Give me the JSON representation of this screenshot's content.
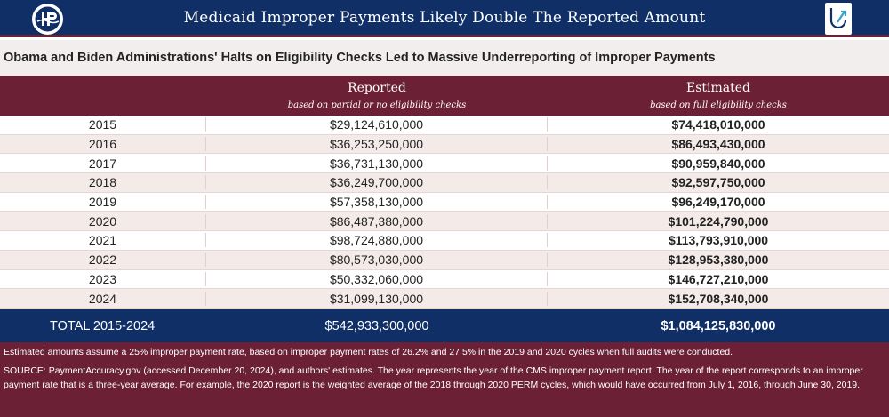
{
  "banner": {
    "title": "Medicaid Improper Payments Likely Double The Reported Amount",
    "left_logo_icon": "ohp-logo-icon",
    "right_logo_icon": "paragon-arrow-logo-icon"
  },
  "subtitle": "Obama and Biden Administrations' Halts on Eligibility Checks Led to Massive Underreporting of Improper Payments",
  "table": {
    "headers": {
      "reported": "Reported",
      "reported_sub": "based on partial or no eligibility checks",
      "estimated": "Estimated",
      "estimated_sub": "based on full eligibility checks"
    },
    "rows": [
      {
        "year": "2015",
        "reported": "$29,124,610,000",
        "estimated": "$74,418,010,000"
      },
      {
        "year": "2016",
        "reported": "$36,253,250,000",
        "estimated": "$86,493,430,000"
      },
      {
        "year": "2017",
        "reported": "$36,731,130,000",
        "estimated": "$90,959,840,000"
      },
      {
        "year": "2018",
        "reported": "$36,249,700,000",
        "estimated": "$92,597,750,000"
      },
      {
        "year": "2019",
        "reported": "$57,358,130,000",
        "estimated": "$96,249,170,000"
      },
      {
        "year": "2020",
        "reported": "$86,487,380,000",
        "estimated": "$101,224,790,000"
      },
      {
        "year": "2021",
        "reported": "$98,724,880,000",
        "estimated": "$113,793,910,000"
      },
      {
        "year": "2022",
        "reported": "$80,573,030,000",
        "estimated": "$128,953,380,000"
      },
      {
        "year": "2023",
        "reported": "$50,332,060,000",
        "estimated": "$146,727,210,000"
      },
      {
        "year": "2024",
        "reported": "$31,099,130,000",
        "estimated": "$152,708,340,000"
      }
    ],
    "total": {
      "label": "TOTAL 2015-2024",
      "reported": "$542,933,300,000",
      "estimated": "$1,084,125,830,000"
    }
  },
  "notes": {
    "assumption": "Estimated amounts assume a 25% improper payment rate, based on improper payment rates of 26.2% and 27.5% in the 2019 and 2020 cycles when full audits were conducted.",
    "source": "SOURCE: PaymentAccuracy.gov (accessed December 20, 2024), and authors' estimates. The year represents the year of the CMS improper payment report. The year of the report corresponds to an improper payment rate that is a three-year average. For example, the 2020 report is the weighted average of the 2018 through 2020 PERM cycles, which would have occurred from July 1, 2016, through June 30, 2019."
  },
  "colors": {
    "navy": "#0f2f66",
    "maroon": "#6b2035",
    "row_shade": "#f4ebe9"
  }
}
